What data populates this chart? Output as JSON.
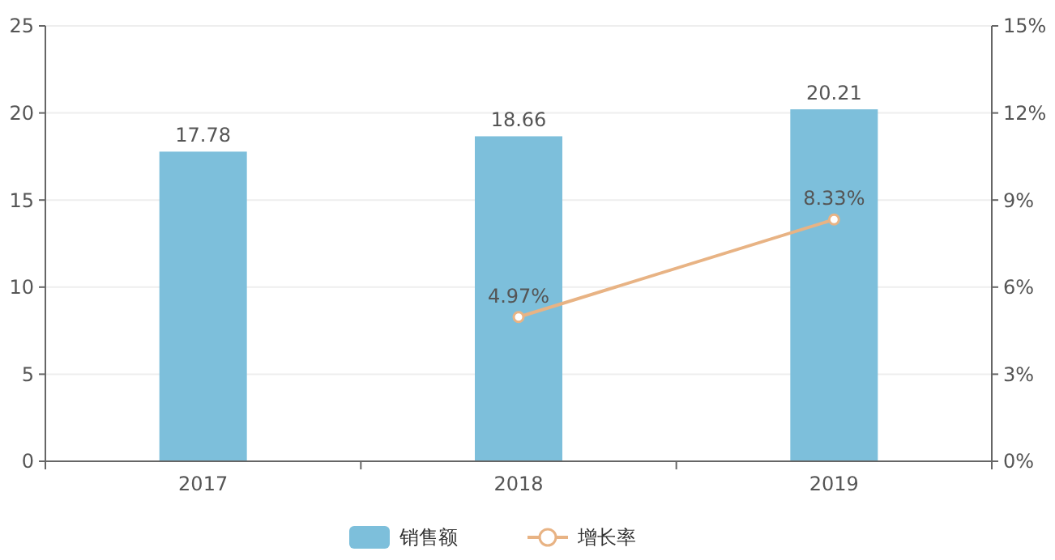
{
  "chart_data": {
    "type": "bar",
    "categories": [
      "2017",
      "2018",
      "2019"
    ],
    "series": [
      {
        "name": "销售额",
        "color": "#7dbfdb",
        "values": [
          17.78,
          18.66,
          20.21
        ],
        "value_labels": [
          "17.78",
          "18.66",
          "20.21"
        ]
      },
      {
        "name": "增长率",
        "type": "line",
        "axis": "y2",
        "color": "#e8b384",
        "marker": "circle",
        "values": [
          null,
          4.97,
          8.33
        ],
        "value_labels": [
          null,
          "4.97%",
          "8.33%"
        ]
      }
    ],
    "ylim": [
      0,
      25
    ],
    "yticks": [
      0,
      5,
      10,
      15,
      20,
      25
    ],
    "y2lim": [
      0,
      15
    ],
    "y2ticks": [
      {
        "value": 0,
        "label": "0%"
      },
      {
        "value": 3,
        "label": "3%"
      },
      {
        "value": 6,
        "label": "6%"
      },
      {
        "value": 9,
        "label": "9%"
      },
      {
        "value": 12,
        "label": "12%"
      },
      {
        "value": 15,
        "label": "15%"
      }
    ],
    "grid": "y",
    "legend": "bottom"
  }
}
